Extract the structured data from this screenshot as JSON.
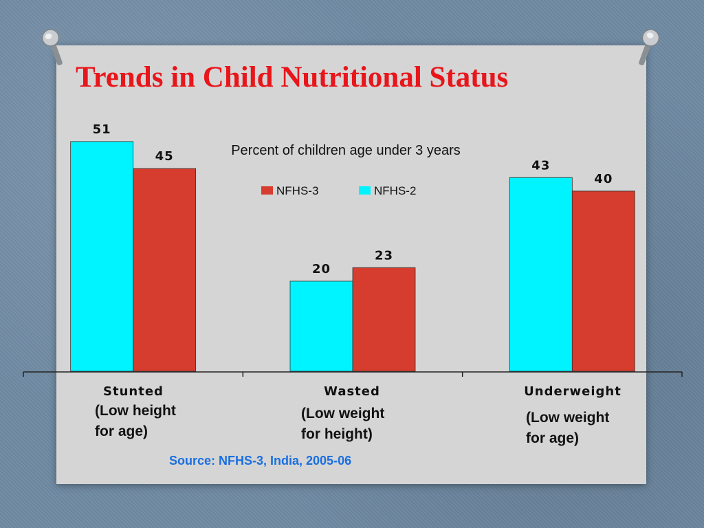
{
  "slide_title": "Trends in Child Nutritional Status",
  "source_text": "Source: NFHS-3, India, 2005-06",
  "colors": {
    "title": "#e8161b",
    "source": "#1a6fe0",
    "nfhs2": "#00f4ff",
    "nfhs3": "#d63d2e"
  },
  "chart_data": {
    "type": "bar",
    "title": "Percent of children age under 3 years",
    "categories": [
      "Stunted",
      "Wasted",
      "Underweight"
    ],
    "category_descriptions": [
      [
        "(Low height",
        "for age)"
      ],
      [
        "(Low weight",
        "for height)"
      ],
      [
        "(Low weight",
        "for age)"
      ]
    ],
    "series": [
      {
        "name": "NFHS-2",
        "color": "#00f4ff",
        "values": [
          51,
          20,
          43
        ]
      },
      {
        "name": "NFHS-3",
        "color": "#d63d2e",
        "values": [
          45,
          23,
          40
        ]
      }
    ],
    "legend_order": [
      "NFHS-3",
      "NFHS-2"
    ],
    "legend_position": "top-center",
    "ylim": [
      0,
      58
    ],
    "xlabel": "",
    "ylabel": "",
    "grid": false
  }
}
